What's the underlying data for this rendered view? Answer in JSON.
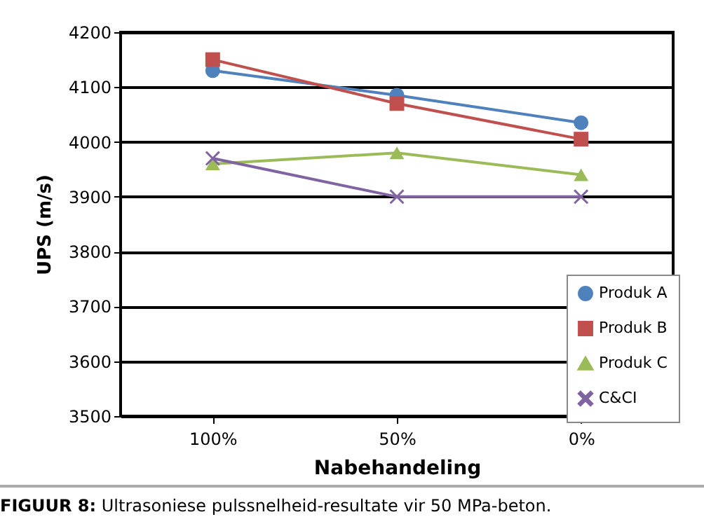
{
  "chart_data": {
    "type": "line",
    "xlabel": "Nabehandeling",
    "ylabel": "UPS (m/s)",
    "categories": [
      "100%",
      "50%",
      "0%"
    ],
    "series": [
      {
        "name": "Produk A",
        "color": "#4f81bd",
        "marker": "circle",
        "values": [
          4130,
          4085,
          4035
        ]
      },
      {
        "name": "Produk B",
        "color": "#c0504d",
        "marker": "square",
        "values": [
          4150,
          4070,
          4005
        ]
      },
      {
        "name": "Produk C",
        "color": "#9bbb59",
        "marker": "triangle",
        "values": [
          3960,
          3980,
          3940
        ]
      },
      {
        "name": "C&CI",
        "color": "#8064a2",
        "marker": "cross",
        "values": [
          3970,
          3900,
          3900
        ]
      }
    ],
    "ylim": [
      3500,
      4200
    ],
    "yticks": [
      3500,
      3600,
      3700,
      3800,
      3900,
      4000,
      4100,
      4200
    ],
    "grid": "y",
    "legend": "bottom right",
    "annotations": [
      "FIGUUR 8: Ultrasoniese pulssnelheid-resultate vir 50 MPa-beton."
    ]
  }
}
